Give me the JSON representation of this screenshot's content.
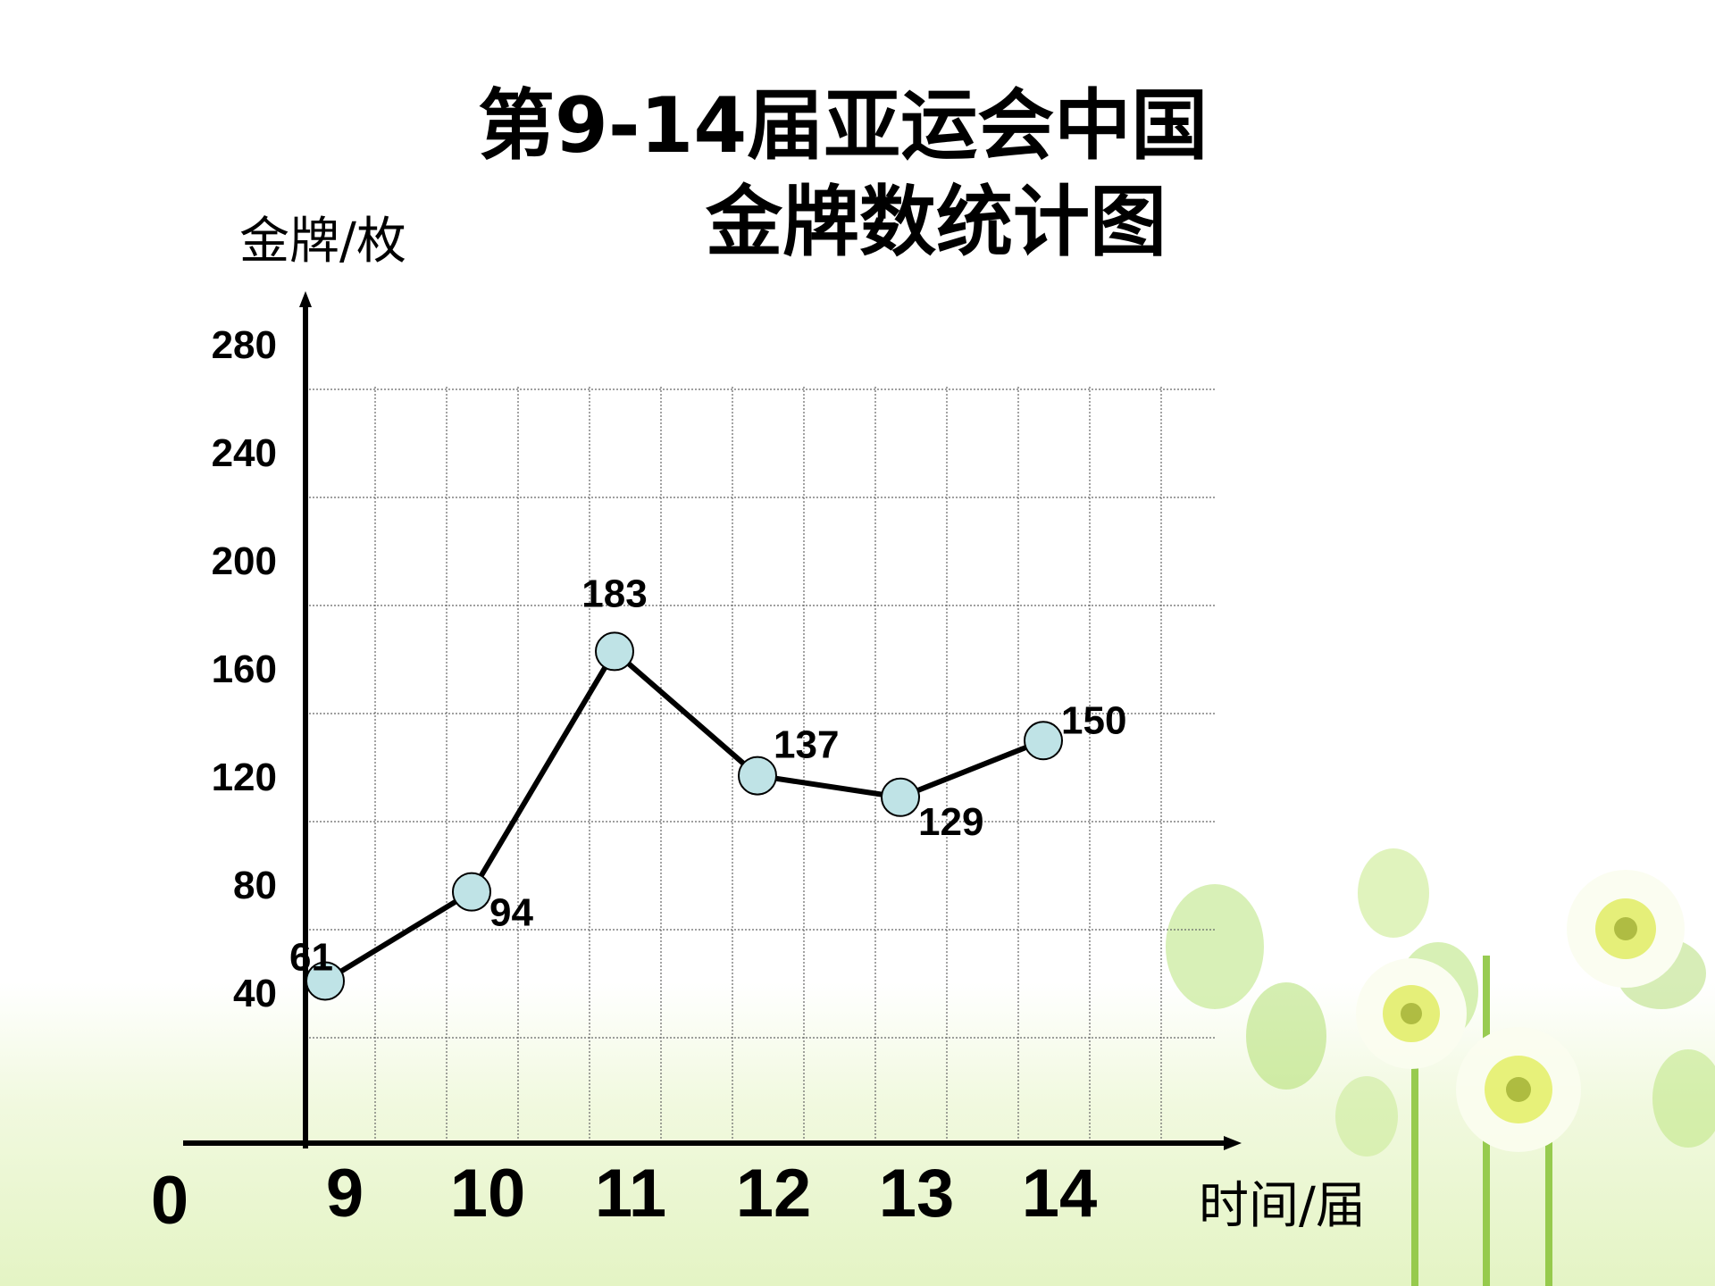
{
  "colors": {
    "marker_fill": "#bfe3e6",
    "marker_stroke": "#000000",
    "line": "#000000",
    "grid": "#666666"
  },
  "title_line1": "第9-14届亚运会中国",
  "title_line2": "金牌数统计图",
  "y_unit": "金牌/枚",
  "x_unit": "时间/届",
  "origin_label": "0",
  "chart_data": {
    "type": "line",
    "title": "第9-14届亚运会中国金牌数统计图",
    "xlabel": "时间/届",
    "ylabel": "金牌/枚",
    "categories": [
      "9",
      "10",
      "11",
      "12",
      "13",
      "14"
    ],
    "y_ticks": [
      "40",
      "80",
      "120",
      "160",
      "200",
      "240",
      "280"
    ],
    "ylim": [
      0,
      280
    ],
    "grid": true,
    "series": [
      {
        "values": [
          61,
          94,
          183,
          137,
          129,
          150
        ],
        "labels": [
          "61",
          "94",
          "183",
          "137",
          "129",
          "150"
        ]
      }
    ]
  }
}
